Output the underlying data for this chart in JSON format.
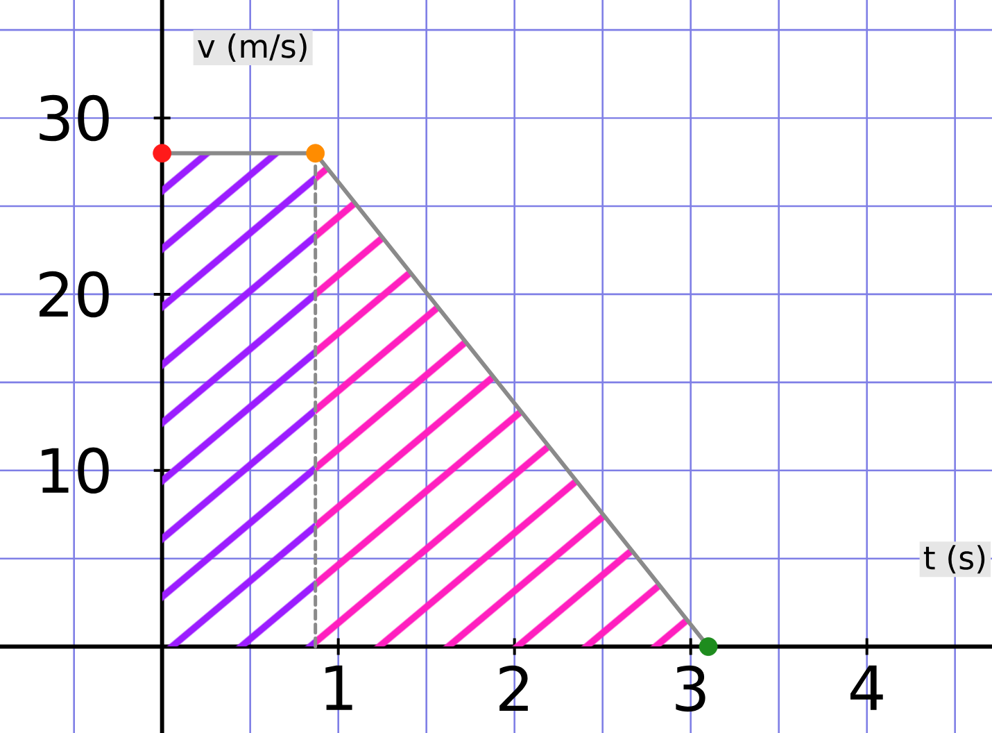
{
  "chart_data": {
    "type": "line",
    "xlabel": "t (s)",
    "ylabel": "v (m/s)",
    "xlim": [
      -0.92,
      4.71
    ],
    "ylim": [
      -4.9,
      36.7
    ],
    "xticks": [
      {
        "value": -0.5,
        "label": null
      },
      {
        "value": 0,
        "label": null
      },
      {
        "value": 0.5,
        "label": null
      },
      1,
      {
        "value": 1.5,
        "label": null
      },
      2,
      {
        "value": 2.5,
        "label": null
      },
      3,
      {
        "value": 3.5,
        "label": null
      },
      4,
      {
        "value": 4.5,
        "label": null
      }
    ],
    "yticks": [
      {
        "value": 0,
        "label": null
      },
      {
        "value": 5,
        "label": null
      },
      10,
      {
        "value": 15,
        "label": null
      },
      20,
      {
        "value": 25,
        "label": null
      },
      30,
      {
        "value": 35,
        "label": null
      }
    ],
    "grid": true,
    "series": [
      {
        "type": "area",
        "x": [
          0,
          0.87
        ],
        "values": [
          28,
          28
        ],
        "color": "#9b1dff"
      },
      {
        "type": "area",
        "x": [
          0.87,
          3.1
        ],
        "values": [
          28,
          0
        ],
        "color": "#ff1fbf"
      },
      {
        "x": [
          0,
          0.87,
          3.1
        ],
        "values": [
          28,
          28,
          0
        ],
        "color": "#8a8a8a"
      },
      {
        "x": [
          0.87,
          0.87
        ],
        "values": [
          0,
          28
        ],
        "color": "#8a8a8a",
        "line_style": "dashed"
      },
      {
        "type": "scatter",
        "x": [
          0
        ],
        "values": [
          28
        ],
        "color": "#ff1a1a",
        "marker": "circle"
      },
      {
        "type": "scatter",
        "x": [
          0.87
        ],
        "values": [
          28
        ],
        "color": "#ff8c00",
        "marker": "circle"
      },
      {
        "type": "scatter",
        "x": [
          3.1
        ],
        "values": [
          0
        ],
        "color": "#1e8c1e",
        "marker": "circle"
      }
    ]
  }
}
